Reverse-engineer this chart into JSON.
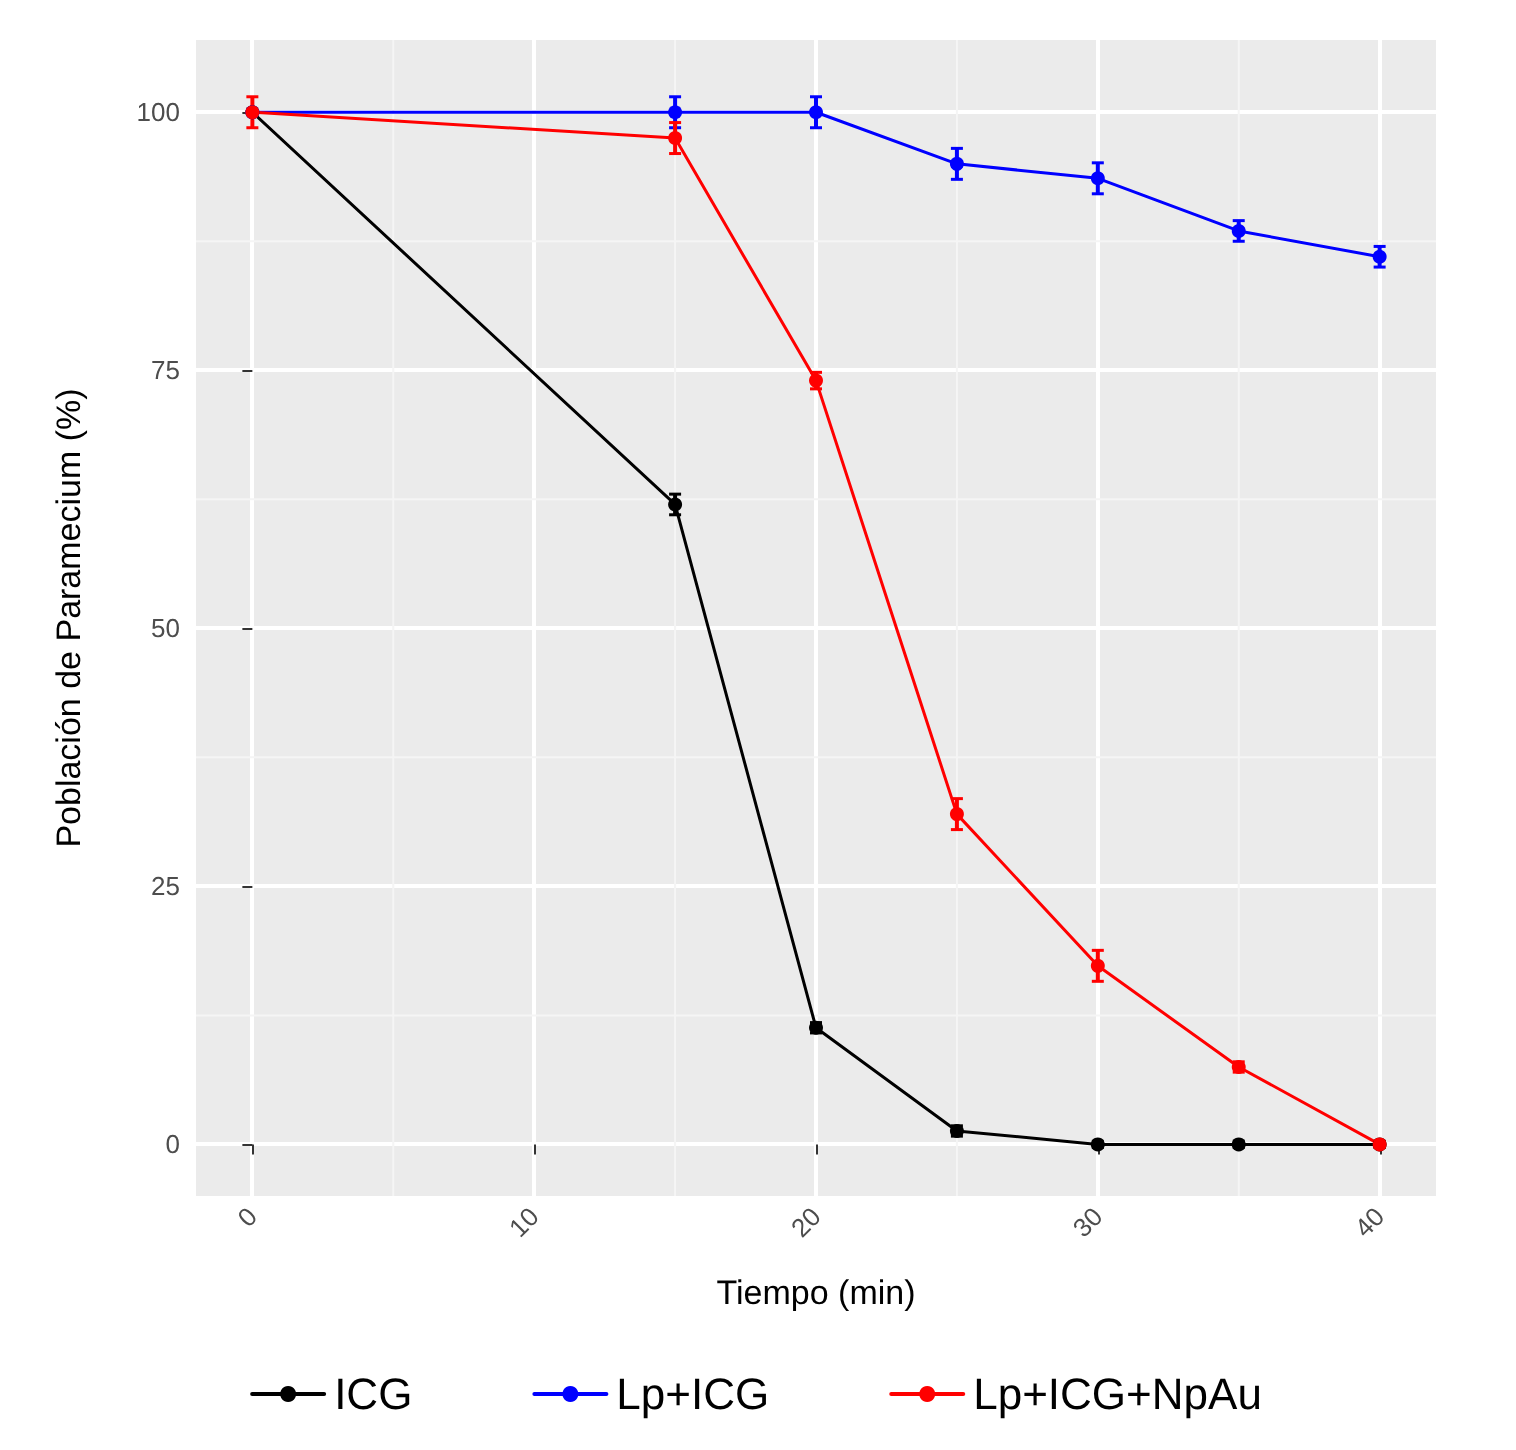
{
  "chart_data": {
    "type": "line",
    "xlabel": "Tiempo (min)",
    "ylabel": "Población de Paramecium (%)",
    "x": [
      0,
      15,
      20,
      25,
      30,
      35,
      40
    ],
    "series": [
      {
        "name": "ICG",
        "color": "#000000",
        "values": [
          100,
          62,
          11.3,
          1.3,
          0,
          0,
          0
        ],
        "errors": [
          null,
          1,
          0.5,
          0.5,
          0.3,
          0.3,
          0.3
        ]
      },
      {
        "name": "Lp+ICG",
        "color": "#0000ff",
        "values": [
          100,
          100,
          100,
          95,
          93.6,
          88.5,
          86
        ],
        "errors": [
          null,
          1.5,
          1.5,
          1.5,
          1.5,
          1,
          1
        ]
      },
      {
        "name": "Lp+ICG+NpAu",
        "color": "#ff0000",
        "values": [
          100,
          97.5,
          74,
          32,
          17.3,
          7.5,
          0
        ],
        "errors": [
          1.5,
          1.5,
          0.8,
          1.5,
          1.5,
          0.5,
          0.3
        ]
      }
    ],
    "xlim": [
      -2,
      42
    ],
    "xticks": [
      0,
      10,
      20,
      30,
      40
    ],
    "ylim": [
      -5,
      107
    ],
    "yticks": [
      0,
      25,
      50,
      75,
      100
    ],
    "grid": true,
    "legend": "bottom",
    "marker": "circle",
    "line_style": "solid"
  }
}
